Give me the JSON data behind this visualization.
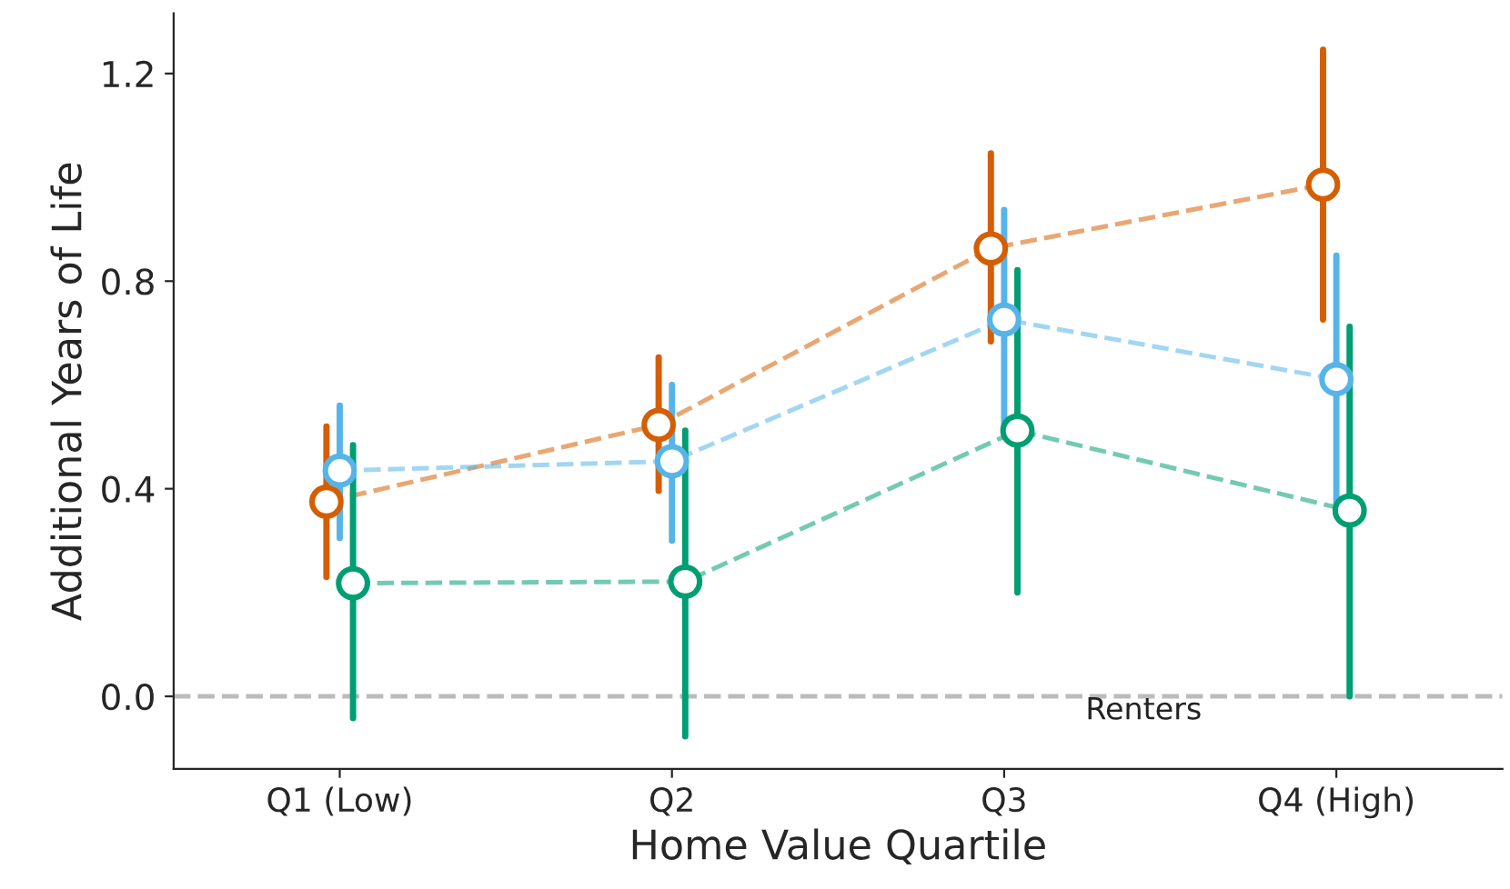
{
  "chart_data": {
    "type": "line",
    "xlabel": "Home Value Quartile",
    "ylabel": "Additional Years of Life",
    "categories": [
      "Q1 (Low)",
      "Q2",
      "Q3",
      "Q4 (High)"
    ],
    "series": [
      {
        "color": "#d55e00",
        "values": [
          0.375,
          0.523,
          0.863,
          0.986
        ],
        "errors": [
          [
            0.23,
            0.52
          ],
          [
            0.396,
            0.653
          ],
          [
            0.684,
            1.046
          ],
          [
            0.726,
            1.246
          ]
        ]
      },
      {
        "color": "#56b4e9",
        "values": [
          0.435,
          0.453,
          0.726,
          0.611
        ],
        "errors": [
          [
            0.305,
            0.56
          ],
          [
            0.3,
            0.6
          ],
          [
            0.519,
            0.937
          ],
          [
            0.365,
            0.849
          ]
        ]
      },
      {
        "color": "#009e73",
        "values": [
          0.218,
          0.221,
          0.512,
          0.358
        ],
        "errors": [
          [
            -0.042,
            0.484
          ],
          [
            -0.077,
            0.512
          ],
          [
            0.2,
            0.821
          ],
          [
            0.0,
            0.712
          ]
        ]
      }
    ],
    "ylim": [
      -0.14,
      1.316
    ],
    "yticks": [
      {
        "value": 0,
        "label": "0.0"
      },
      0.4,
      0.8,
      1.2
    ],
    "ref_lines": [
      {
        "axis": "y",
        "value": 0,
        "label": "Renters",
        "color": "#bbbbbb",
        "line_style": "dashed"
      }
    ],
    "marker": "circle",
    "line_style": "dashed",
    "grid": false,
    "legend": false
  }
}
